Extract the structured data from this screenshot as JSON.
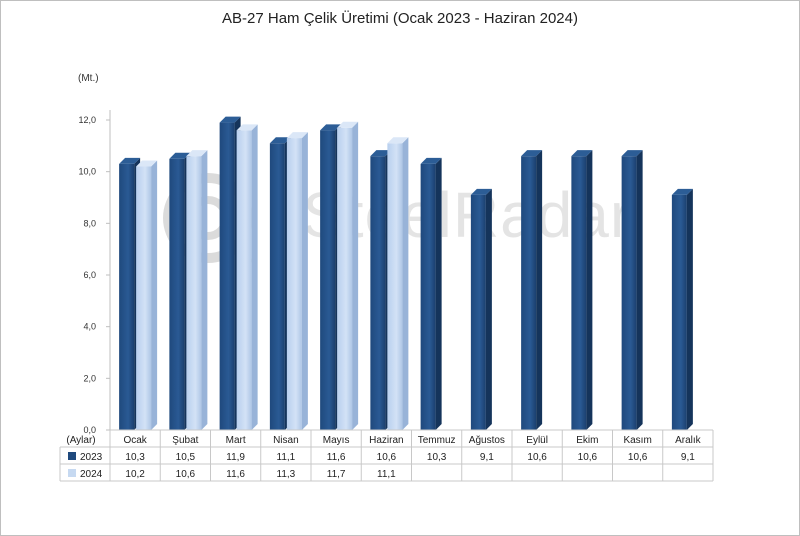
{
  "chart_data": {
    "type": "bar",
    "title": "AB-27 Ham Çelik Üretimi (Ocak 2023 - Haziran 2024)",
    "unit": "(Mt.)",
    "table_header": "(Aylar)",
    "watermark": "SteelRadar",
    "categories": [
      "Ocak",
      "Şubat",
      "Mart",
      "Nisan",
      "Mayıs",
      "Haziran",
      "Temmuz",
      "Ağustos",
      "Eylül",
      "Ekim",
      "Kasım",
      "Aralık"
    ],
    "series": [
      {
        "name": "2023",
        "color": "#1f497d",
        "values": [
          10.3,
          10.5,
          11.9,
          11.1,
          11.6,
          10.6,
          10.3,
          9.1,
          10.6,
          10.6,
          10.6,
          9.1
        ],
        "labels": [
          "10,3",
          "10,5",
          "11,9",
          "11,1",
          "11,6",
          "10,6",
          "10,3",
          "9,1",
          "10,6",
          "10,6",
          "10,6",
          "9,1"
        ]
      },
      {
        "name": "2024",
        "color": "#c6d9f1",
        "values": [
          10.2,
          10.6,
          11.6,
          11.3,
          11.7,
          11.1,
          null,
          null,
          null,
          null,
          null,
          null
        ],
        "labels": [
          "10,2",
          "10,6",
          "11,6",
          "11,3",
          "11,7",
          "11,1",
          "",
          "",
          "",
          "",
          "",
          ""
        ]
      }
    ],
    "ylim": [
      0,
      12
    ],
    "yticks": [
      0,
      2,
      4,
      6,
      8,
      10,
      12
    ],
    "ytick_labels": [
      "0,0",
      "2,0",
      "4,0",
      "6,0",
      "8,0",
      "10,0",
      "12,0"
    ],
    "grid": false,
    "legend": "data-table"
  }
}
